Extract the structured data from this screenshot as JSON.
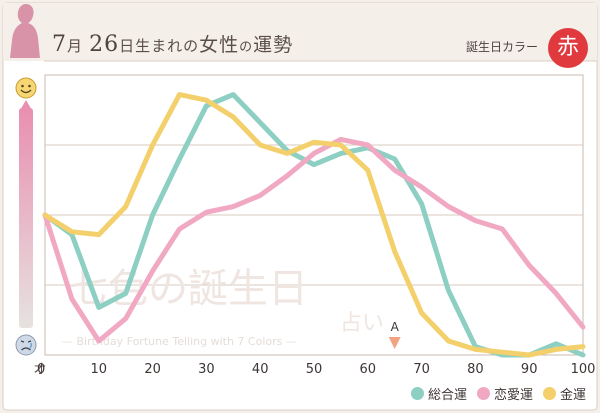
{
  "header": {
    "month": "7",
    "month_unit": "月",
    "day": "26",
    "day_unit": "日生まれの",
    "gender": "女性",
    "suffix_no": "の",
    "subject": "運勢",
    "birth_color_label": "誕生日カラー",
    "birth_color_name": "赤"
  },
  "watermark": {
    "main": "七色の誕生日",
    "sub": "占い",
    "english": "— Birthday Fortune Telling with 7 Colors —"
  },
  "marker": {
    "label": "A",
    "age": 65
  },
  "x_unit": "才",
  "colors": {
    "overall": "#8dcfc3",
    "love": "#f0a8c3",
    "money": "#f3d06b",
    "accent": "#e03a3f"
  },
  "icons": {
    "top": "smile-face-icon",
    "bottom": "sad-face-icon"
  },
  "chart_data": {
    "type": "line",
    "title": "",
    "xlim": [
      0,
      100
    ],
    "ylim": [
      0,
      100
    ],
    "x_ticks": [
      0,
      10,
      20,
      30,
      40,
      50,
      60,
      70,
      80,
      90,
      100
    ],
    "series": [
      {
        "name": "総合運",
        "color": "#8dcfc3",
        "x": [
          0,
          5,
          10,
          15,
          20,
          25,
          30,
          35,
          40,
          45,
          50,
          55,
          60,
          65,
          70,
          75,
          80,
          85,
          90,
          95,
          100
        ],
        "y": [
          50,
          43,
          17,
          22,
          50,
          70,
          89,
          93,
          83,
          73,
          68,
          72,
          74,
          70,
          54,
          23,
          3,
          0,
          0,
          4,
          0
        ]
      },
      {
        "name": "恋愛運",
        "color": "#f0a8c3",
        "x": [
          0,
          5,
          10,
          15,
          20,
          25,
          30,
          35,
          40,
          45,
          50,
          55,
          60,
          65,
          70,
          75,
          80,
          85,
          90,
          95,
          100
        ],
        "y": [
          50,
          20,
          5,
          13,
          30,
          45,
          51,
          53,
          57,
          64,
          72,
          77,
          75,
          66,
          60,
          53,
          48,
          45,
          32,
          22,
          10
        ]
      },
      {
        "name": "金運",
        "color": "#f3d06b",
        "x": [
          0,
          5,
          10,
          15,
          20,
          25,
          30,
          35,
          40,
          45,
          50,
          55,
          60,
          65,
          70,
          75,
          80,
          85,
          90,
          95,
          100
        ],
        "y": [
          50,
          44,
          43,
          53,
          75,
          93,
          91,
          85,
          75,
          72,
          76,
          75,
          66,
          37,
          15,
          5,
          2,
          1,
          0,
          2,
          3
        ]
      }
    ]
  }
}
